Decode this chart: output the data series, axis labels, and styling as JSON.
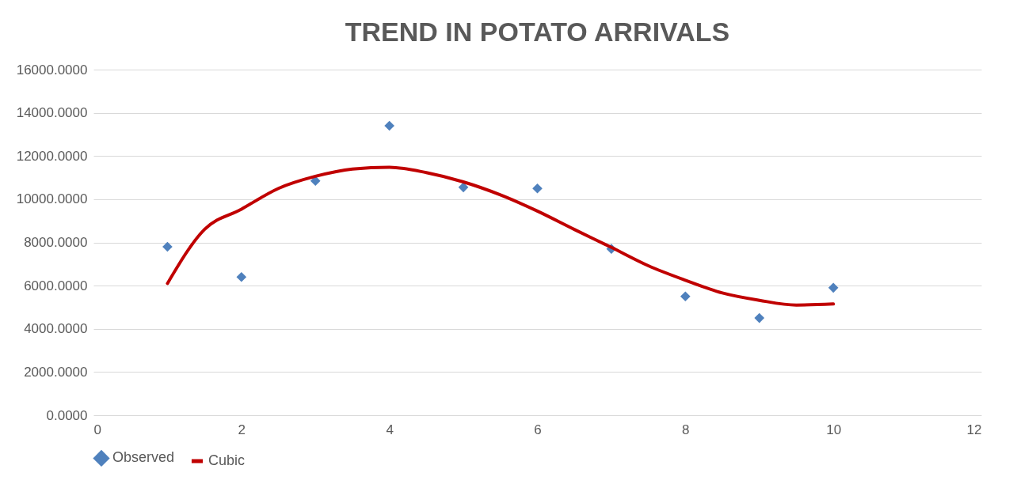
{
  "chart_data": {
    "type": "scatter",
    "title": "TREND IN POTATO ARRIVALS",
    "series": [
      {
        "name": "Observed",
        "color": "#4f81bd",
        "marker": "diamond",
        "x": [
          1,
          2,
          3,
          4,
          5,
          6,
          7,
          8,
          9,
          10
        ],
        "values": [
          7800,
          6400,
          10850,
          13400,
          10550,
          10500,
          7700,
          5500,
          4500,
          5900
        ]
      },
      {
        "name": "Cubic",
        "type": "line",
        "color": "#c00000",
        "marker": "none",
        "line_style": "solid",
        "x": [
          1,
          1.5,
          2,
          2.5,
          3,
          3.5,
          4,
          4.5,
          5,
          5.5,
          6,
          6.5,
          7,
          7.5,
          8,
          8.5,
          9,
          9.5,
          10
        ],
        "values": [
          6100,
          8600,
          9540,
          10500,
          11060,
          11400,
          11480,
          11230,
          10800,
          10200,
          9450,
          8600,
          7770,
          6920,
          6250,
          5660,
          5320,
          5100,
          5150
        ]
      }
    ],
    "xlim": [
      0,
      12
    ],
    "xticks": [
      0,
      2,
      4,
      6,
      8,
      10,
      12
    ],
    "ylim": [
      0,
      16000
    ],
    "yticks": [
      {
        "value": 0,
        "label": "0.0000"
      },
      {
        "value": 2000,
        "label": "2000.0000"
      },
      {
        "value": 4000,
        "label": "4000.0000"
      },
      {
        "value": 6000,
        "label": "6000.0000"
      },
      {
        "value": 8000,
        "label": "8000.0000"
      },
      {
        "value": 10000,
        "label": "10000.0000"
      },
      {
        "value": 12000,
        "label": "12000.0000"
      },
      {
        "value": 14000,
        "label": "14000.0000"
      },
      {
        "value": 16000,
        "label": "16000.0000"
      }
    ],
    "grid": "y",
    "legend": "bottom"
  }
}
